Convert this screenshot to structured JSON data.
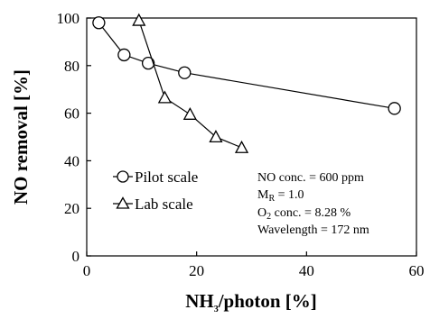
{
  "chart_data": {
    "type": "line",
    "xlabel_main": "NH",
    "xlabel_sub": "3",
    "xlabel_rest": "/photon  [%]",
    "ylabel": "NO removal [%]",
    "xlim": [
      0,
      60
    ],
    "ylim": [
      0,
      100
    ],
    "xticks": [
      0,
      20,
      40,
      60
    ],
    "yticks": [
      0,
      20,
      40,
      60,
      80,
      100
    ],
    "grid": false,
    "legend_position": "bottom-left",
    "series": [
      {
        "name": "Pilot scale",
        "marker": "circle",
        "x": [
          2.2,
          6.8,
          11.2,
          17.8,
          56
        ],
        "y": [
          98,
          84.5,
          81,
          77,
          62
        ]
      },
      {
        "name": "Lab scale",
        "marker": "triangle",
        "x": [
          9.5,
          14.2,
          18.8,
          23.5,
          28.2
        ],
        "y": [
          99,
          66.5,
          59.5,
          50,
          45.5
        ]
      }
    ],
    "annotations": {
      "line1": "NO conc. = 600 ppm",
      "line2_main": "M",
      "line2_sub": "R",
      "line2_rest": " = 1.0",
      "line3_main": "O",
      "line3_sub": "2",
      "line3_rest": " conc. = 8.28 %",
      "line4": "Wavelength = 172 nm"
    }
  }
}
